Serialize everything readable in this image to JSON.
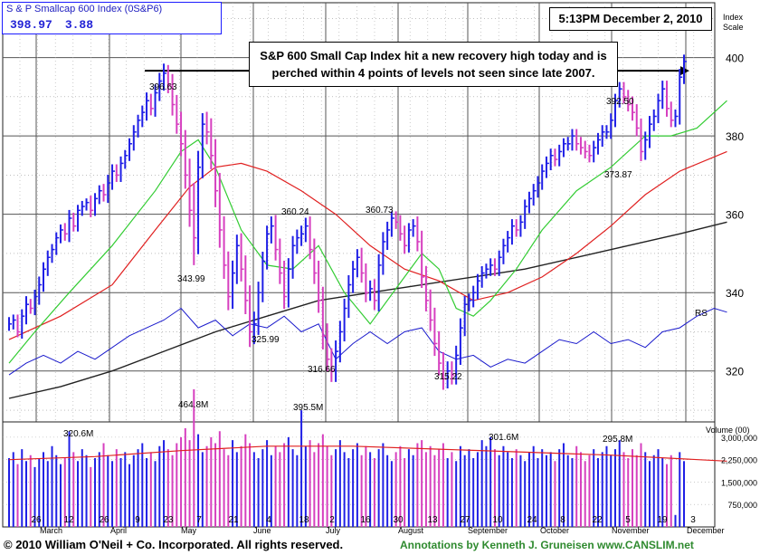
{
  "header": {
    "ticker_name": "S & P Smallcap 600 Index  (0S&P6)",
    "last": "398.97",
    "change": "3.88",
    "timestamp": "5:13PM December 2, 2010",
    "scale_label_1": "Index",
    "scale_label_2": "Scale",
    "volume_label": "Volume (00)"
  },
  "annotation": {
    "line1": "S&P 600 Small Cap Index hit a new recovery high today and is",
    "line2": "perched within 4 points of levels not seen since late 2007."
  },
  "footer": {
    "copyright": "© 2010 William O'Neil + Co. Incorporated. All rights reserved.",
    "credit": "Annotations by Kenneth J. Gruneisen www.CANSLIM.net"
  },
  "colors": {
    "up_bar": "#1f1fe6",
    "down_bar": "#d63fbf",
    "ma_short": "#33cc33",
    "ma_mid": "#e02020",
    "ma_long": "#222222",
    "rs_line": "#1a1acc",
    "grid": "#777777"
  },
  "chart_data": {
    "type": "ohlc",
    "title": "S & P Smallcap 600 Index  (0S&P6)",
    "price_axis": {
      "ticks": [
        "320",
        "340",
        "360",
        "380",
        "400"
      ],
      "ylim": [
        307,
        414
      ]
    },
    "volume_axis": {
      "ticks": [
        "750,000",
        "1,500,000",
        "2,250,000",
        "3,000,000"
      ],
      "ylim": [
        0,
        3450000
      ]
    },
    "x_labels": [
      "26",
      "12",
      "26",
      "9",
      "23",
      "7",
      "21",
      "4",
      "18",
      "2",
      "16",
      "30",
      "13",
      "27",
      "10",
      "24",
      "8",
      "22",
      "5",
      "19",
      "3"
    ],
    "month_labels": [
      "March",
      "April",
      "May",
      "June",
      "July",
      "August",
      "September",
      "October",
      "November",
      "December"
    ],
    "price_annotations": [
      "396.63",
      "343.99",
      "325.99",
      "360.24",
      "316.66",
      "360.73",
      "315.22",
      "392.50",
      "373.87"
    ],
    "volume_annotations": [
      "320.6M",
      "464.8M",
      "395.5M",
      "301.6M",
      "295.8M"
    ],
    "closes": [
      332,
      333,
      330,
      334,
      337,
      336,
      339,
      342,
      346,
      349,
      351,
      354,
      356,
      355,
      359,
      357,
      361,
      362,
      363,
      361,
      364,
      366,
      365,
      368,
      371,
      370,
      373,
      375,
      378,
      381,
      384,
      386,
      389,
      387,
      391,
      394,
      396,
      393,
      388,
      383,
      378,
      370,
      361,
      354,
      372,
      383,
      381,
      375,
      366,
      356,
      347,
      339,
      345,
      352,
      346,
      338,
      330,
      332,
      340,
      348,
      355,
      357,
      351,
      345,
      339,
      346,
      352,
      354,
      355,
      357,
      351,
      345,
      338,
      329,
      323,
      320,
      325,
      330,
      336,
      342,
      346,
      349,
      345,
      340,
      341,
      338,
      347,
      353,
      356,
      359,
      358,
      355,
      352,
      356,
      357,
      353,
      344,
      338,
      333,
      327,
      322,
      318,
      320,
      319,
      324,
      331,
      337,
      338,
      340,
      343,
      345,
      346,
      347,
      346,
      349,
      352,
      354,
      357,
      356,
      358,
      362,
      364,
      366,
      368,
      371,
      373,
      375,
      374,
      376,
      378,
      378,
      380,
      378,
      377,
      376,
      375,
      377,
      379,
      381,
      381,
      384,
      389,
      392,
      390,
      388,
      386,
      382,
      376,
      379,
      383,
      385,
      389,
      392,
      387,
      384,
      385,
      395,
      399
    ],
    "ranges": [
      5,
      4,
      4,
      5,
      6,
      4,
      5,
      6,
      5,
      5,
      4,
      4,
      4,
      5,
      6,
      4,
      4,
      4,
      3,
      5,
      4,
      4,
      5,
      6,
      5,
      5,
      5,
      4,
      4,
      5,
      4,
      5,
      6,
      5,
      6,
      6,
      7,
      6,
      8,
      7,
      9,
      10,
      12,
      20,
      12,
      8,
      9,
      10,
      12,
      13,
      10,
      10,
      9,
      8,
      9,
      10,
      11,
      9,
      8,
      7,
      6,
      7,
      8,
      8,
      9,
      8,
      7,
      6,
      6,
      6,
      7,
      8,
      9,
      10,
      9,
      8,
      8,
      8,
      7,
      7,
      6,
      6,
      7,
      7,
      6,
      7,
      8,
      7,
      6,
      5,
      5,
      5,
      6,
      5,
      5,
      7,
      8,
      8,
      8,
      9,
      9,
      8,
      7,
      7,
      7,
      7,
      6,
      5,
      5,
      5,
      5,
      4,
      5,
      5,
      5,
      5,
      5,
      5,
      5,
      5,
      5,
      5,
      5,
      5,
      5,
      5,
      5,
      5,
      5,
      4,
      5,
      5,
      5,
      5,
      5,
      5,
      5,
      5,
      5,
      5,
      5,
      5,
      5,
      5,
      5,
      6,
      6,
      7,
      6,
      6,
      5,
      5,
      6,
      6,
      5,
      5,
      6,
      5
    ],
    "ma_short": [
      [
        0,
        322
      ],
      [
        6,
        330
      ],
      [
        14,
        340
      ],
      [
        24,
        352
      ],
      [
        34,
        366
      ],
      [
        40,
        376
      ],
      [
        44,
        379
      ],
      [
        48,
        372
      ],
      [
        54,
        356
      ],
      [
        60,
        347
      ],
      [
        66,
        346
      ],
      [
        72,
        352
      ],
      [
        78,
        340
      ],
      [
        84,
        332
      ],
      [
        90,
        341
      ],
      [
        96,
        350
      ],
      [
        100,
        346
      ],
      [
        104,
        336
      ],
      [
        108,
        334
      ],
      [
        112,
        338
      ],
      [
        118,
        346
      ],
      [
        124,
        356
      ],
      [
        132,
        366
      ],
      [
        140,
        372
      ],
      [
        148,
        380
      ],
      [
        154,
        380
      ],
      [
        160,
        382
      ],
      [
        167,
        389
      ]
    ],
    "ma_mid": [
      [
        0,
        328
      ],
      [
        12,
        334
      ],
      [
        24,
        342
      ],
      [
        34,
        356
      ],
      [
        42,
        367
      ],
      [
        48,
        372
      ],
      [
        54,
        373
      ],
      [
        60,
        371
      ],
      [
        68,
        366
      ],
      [
        76,
        360
      ],
      [
        84,
        352
      ],
      [
        92,
        346
      ],
      [
        100,
        343
      ],
      [
        108,
        338
      ],
      [
        116,
        340
      ],
      [
        124,
        344
      ],
      [
        132,
        350
      ],
      [
        140,
        357
      ],
      [
        148,
        365
      ],
      [
        156,
        371
      ],
      [
        167,
        376
      ]
    ],
    "ma_long": [
      [
        0,
        313
      ],
      [
        12,
        316
      ],
      [
        24,
        320
      ],
      [
        36,
        325
      ],
      [
        48,
        330
      ],
      [
        60,
        334
      ],
      [
        72,
        338
      ],
      [
        84,
        340
      ],
      [
        96,
        342
      ],
      [
        108,
        344
      ],
      [
        120,
        346
      ],
      [
        132,
        349
      ],
      [
        144,
        352
      ],
      [
        156,
        355
      ],
      [
        167,
        358
      ]
    ],
    "rs_line": [
      [
        0,
        319
      ],
      [
        4,
        322
      ],
      [
        8,
        324
      ],
      [
        12,
        322
      ],
      [
        16,
        325
      ],
      [
        20,
        323
      ],
      [
        24,
        326
      ],
      [
        28,
        329
      ],
      [
        32,
        331
      ],
      [
        36,
        333
      ],
      [
        40,
        336
      ],
      [
        44,
        331
      ],
      [
        48,
        333
      ],
      [
        52,
        329
      ],
      [
        56,
        332
      ],
      [
        60,
        331
      ],
      [
        64,
        334
      ],
      [
        68,
        330
      ],
      [
        72,
        332
      ],
      [
        76,
        323
      ],
      [
        80,
        327
      ],
      [
        84,
        330
      ],
      [
        88,
        327
      ],
      [
        92,
        330
      ],
      [
        96,
        331
      ],
      [
        100,
        325
      ],
      [
        104,
        323
      ],
      [
        108,
        324
      ],
      [
        112,
        321
      ],
      [
        116,
        323
      ],
      [
        120,
        322
      ],
      [
        124,
        325
      ],
      [
        128,
        328
      ],
      [
        132,
        327
      ],
      [
        136,
        330
      ],
      [
        140,
        327
      ],
      [
        144,
        328
      ],
      [
        148,
        326
      ],
      [
        152,
        330
      ],
      [
        156,
        331
      ],
      [
        160,
        334
      ],
      [
        164,
        336
      ],
      [
        167,
        335
      ]
    ],
    "volumes": [
      2.3,
      2.5,
      2.1,
      2.6,
      2.2,
      2.4,
      2.0,
      2.3,
      2.5,
      2.2,
      2.7,
      2.4,
      2.1,
      2.3,
      3.2,
      2.5,
      2.2,
      2.6,
      2.4,
      2.0,
      2.3,
      2.5,
      2.8,
      2.4,
      2.2,
      2.6,
      2.3,
      2.5,
      2.1,
      2.4,
      2.6,
      2.8,
      2.3,
      2.5,
      2.2,
      2.7,
      2.9,
      2.6,
      2.4,
      2.8,
      3.0,
      3.3,
      2.9,
      4.6,
      3.1,
      2.5,
      2.7,
      3.0,
      2.8,
      3.2,
      2.6,
      2.4,
      2.9,
      2.5,
      2.7,
      3.1,
      2.8,
      2.5,
      2.3,
      2.6,
      2.9,
      2.4,
      2.7,
      2.5,
      2.8,
      3.0,
      2.6,
      2.4,
      3.9,
      2.7,
      2.9,
      2.5,
      2.8,
      3.1,
      2.7,
      2.4,
      2.6,
      2.9,
      2.5,
      2.3,
      2.6,
      2.8,
      2.4,
      2.7,
      2.5,
      2.3,
      2.6,
      2.8,
      2.4,
      2.2,
      2.5,
      2.7,
      2.3,
      2.6,
      2.4,
      2.8,
      2.9,
      2.5,
      2.7,
      2.4,
      2.6,
      2.8,
      2.3,
      2.5,
      2.2,
      2.7,
      2.4,
      2.6,
      2.3,
      2.5,
      2.9,
      2.7,
      3.0,
      2.6,
      2.4,
      2.7,
      2.5,
      2.3,
      2.6,
      2.4,
      2.2,
      2.5,
      2.7,
      2.3,
      2.6,
      2.4,
      2.5,
      2.2,
      2.6,
      2.8,
      2.4,
      2.3,
      2.7,
      2.5,
      2.2,
      2.4,
      2.6,
      2.3,
      2.5,
      2.7,
      2.4,
      2.6,
      2.9,
      2.5,
      2.3,
      2.6,
      2.4,
      2.8,
      2.5,
      2.2,
      2.4,
      2.6,
      2.3,
      2.1,
      2.4,
      0.4,
      2.5,
      2.2
    ],
    "volume_avg": [
      [
        0,
        2.25
      ],
      [
        20,
        2.35
      ],
      [
        40,
        2.55
      ],
      [
        60,
        2.7
      ],
      [
        80,
        2.7
      ],
      [
        100,
        2.6
      ],
      [
        120,
        2.5
      ],
      [
        140,
        2.4
      ],
      [
        167,
        2.2
      ]
    ],
    "volume_unit_millions": "per 100 shares",
    "recovery_high_line": 396.63
  }
}
